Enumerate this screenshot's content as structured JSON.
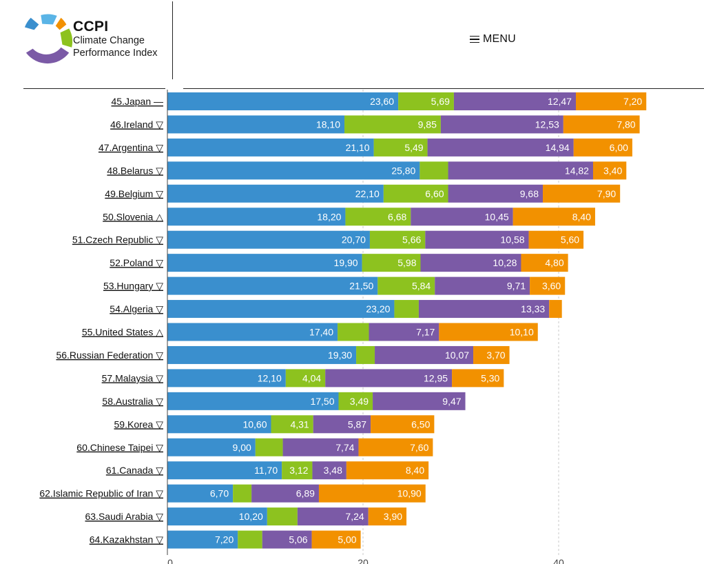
{
  "header": {
    "brand_short": "CCPI",
    "brand_line1": "Climate Change",
    "brand_line2": "Performance Index",
    "menu_label": "MENU"
  },
  "colors": {
    "seg1": "#3a8fce",
    "seg2": "#8dc21f",
    "seg3": "#7b5aa6",
    "seg4": "#f29100"
  },
  "chart_data": {
    "type": "bar",
    "orientation": "horizontal",
    "stacked": true,
    "xlim": [
      0,
      55
    ],
    "x_ticks": [
      "0",
      "20",
      "40"
    ],
    "grid": true,
    "categories": [
      "45.Japan —",
      "46.Ireland ▽",
      "47.Argentina ▽",
      "48.Belarus ▽",
      "49.Belgium ▽",
      "50.Slovenia △",
      "51.Czech Republic ▽",
      "52.Poland ▽",
      "53.Hungary ▽",
      "54.Algeria ▽",
      "55.United States △",
      "56.Russian Federation ▽",
      "57.Malaysia ▽",
      "58.Australia ▽",
      "59.Korea ▽",
      "60.Chinese Taipei ▽",
      "61.Canada ▽",
      "62.Islamic Republic of Iran ▽",
      "63.Saudi Arabia ▽",
      "64.Kazakhstan ▽"
    ],
    "series": [
      {
        "values": [
          23.6,
          18.1,
          21.1,
          25.8,
          22.1,
          18.2,
          20.7,
          19.9,
          21.5,
          23.2,
          17.4,
          19.3,
          12.1,
          17.5,
          10.6,
          9.0,
          11.7,
          6.7,
          10.2,
          7.2
        ],
        "labels": [
          "23,60",
          "18,10",
          "21,10",
          "25,80",
          "22,10",
          "18,20",
          "20,70",
          "19,90",
          "21,50",
          "23,20",
          "17,40",
          "19,30",
          "12,10",
          "17,50",
          "10,60",
          "9,00",
          "11,70",
          "6,70",
          "10,20",
          "7,20"
        ]
      },
      {
        "values": [
          5.69,
          9.85,
          5.49,
          2.9,
          6.6,
          6.68,
          5.66,
          5.98,
          5.84,
          2.5,
          3.2,
          1.9,
          4.04,
          3.49,
          4.31,
          2.8,
          3.12,
          1.9,
          3.1,
          2.5
        ],
        "labels": [
          "5,69",
          "9,85",
          "5,49",
          "",
          "6,60",
          "6,68",
          "5,66",
          "5,98",
          "5,84",
          "",
          "",
          "",
          "4,04",
          "3,49",
          "4,31",
          "",
          "3,12",
          "",
          "",
          ""
        ]
      },
      {
        "values": [
          12.47,
          12.53,
          14.94,
          14.82,
          9.68,
          10.45,
          10.58,
          10.28,
          9.71,
          13.33,
          7.17,
          10.07,
          12.95,
          9.47,
          5.87,
          7.74,
          3.48,
          6.89,
          7.24,
          5.06
        ],
        "labels": [
          "12,47",
          "12,53",
          "14,94",
          "14,82",
          "9,68",
          "10,45",
          "10,58",
          "10,28",
          "9,71",
          "13,33",
          "7,17",
          "10,07",
          "12,95",
          "9,47",
          "5,87",
          "7,74",
          "3,48",
          "6,89",
          "7,24",
          "5,06"
        ]
      },
      {
        "values": [
          7.2,
          7.8,
          6.0,
          3.4,
          7.9,
          8.4,
          5.6,
          4.8,
          3.6,
          1.3,
          10.1,
          3.7,
          5.3,
          0,
          6.5,
          7.6,
          8.4,
          10.9,
          3.9,
          5.0
        ],
        "labels": [
          "7,20",
          "7,80",
          "6,00",
          "3,40",
          "7,90",
          "8,40",
          "5,60",
          "4,80",
          "3,60",
          "",
          "10,10",
          "3,70",
          "5,30",
          "",
          "6,50",
          "7,60",
          "8,40",
          "10,90",
          "3,90",
          "5,00"
        ]
      }
    ]
  }
}
